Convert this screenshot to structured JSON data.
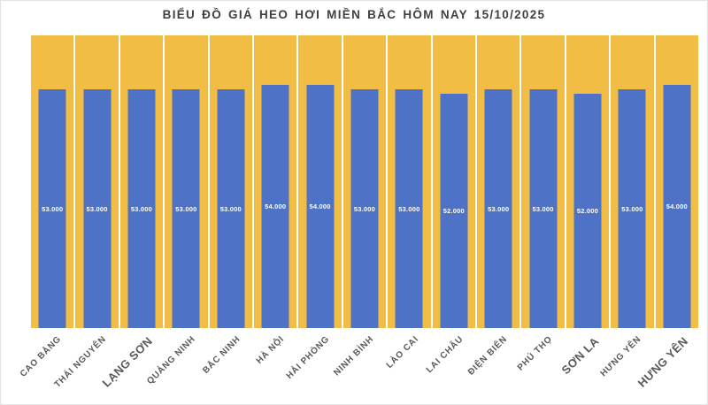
{
  "page": {
    "title": "BIỂU ĐỒ GIÁ HEO HƠI MIỀN BẮC HÔM NAY 15/10/2025"
  },
  "colors": {
    "page_bg": "#FFFFFF",
    "page_border": "#E3E3E3",
    "title": "#404040",
    "band": "#F2BD44",
    "bar": "#4E73C6",
    "value_label": "#FFFFFF",
    "axis_label": "#595959"
  },
  "chart_data": {
    "type": "bar",
    "title": "BIỂU ĐỒ GIÁ HEO HƠI MIỀN BẮC HÔM NAY 15/10/2025",
    "categories": [
      "CAO BẰNG",
      "THÁI NGUYÊN",
      "LẠNG SƠN",
      "QUẢNG NINH",
      "BẮC NINH",
      "HÀ NỘI",
      "HẢI PHÒNG",
      "NINH BÌNH",
      "LÀO CAI",
      "LAI CHÂU",
      "ĐIỆN BIÊN",
      "PHÚ THỌ",
      "SƠN LA",
      "HƯNG YÊN",
      "HƯNG YÊN"
    ],
    "values": [
      53000,
      53000,
      53000,
      53000,
      53000,
      54000,
      54000,
      53000,
      53000,
      52000,
      53000,
      53000,
      52000,
      53000,
      54000
    ],
    "value_labels": [
      "53.000",
      "53.000",
      "53.000",
      "53.000",
      "53.000",
      "54.000",
      "54.000",
      "53.000",
      "53.000",
      "52.000",
      "53.000",
      "53.000",
      "52.000",
      "53.000",
      "54.000"
    ],
    "emphasized_category_indices": [
      2,
      12,
      14
    ],
    "xlabel": "",
    "ylabel": "",
    "ylim": [
      0,
      65000
    ],
    "grid": false,
    "legend": false,
    "value_label_position": "inside-center",
    "x_tick_rotation": -45,
    "background_band_full_height": true
  }
}
